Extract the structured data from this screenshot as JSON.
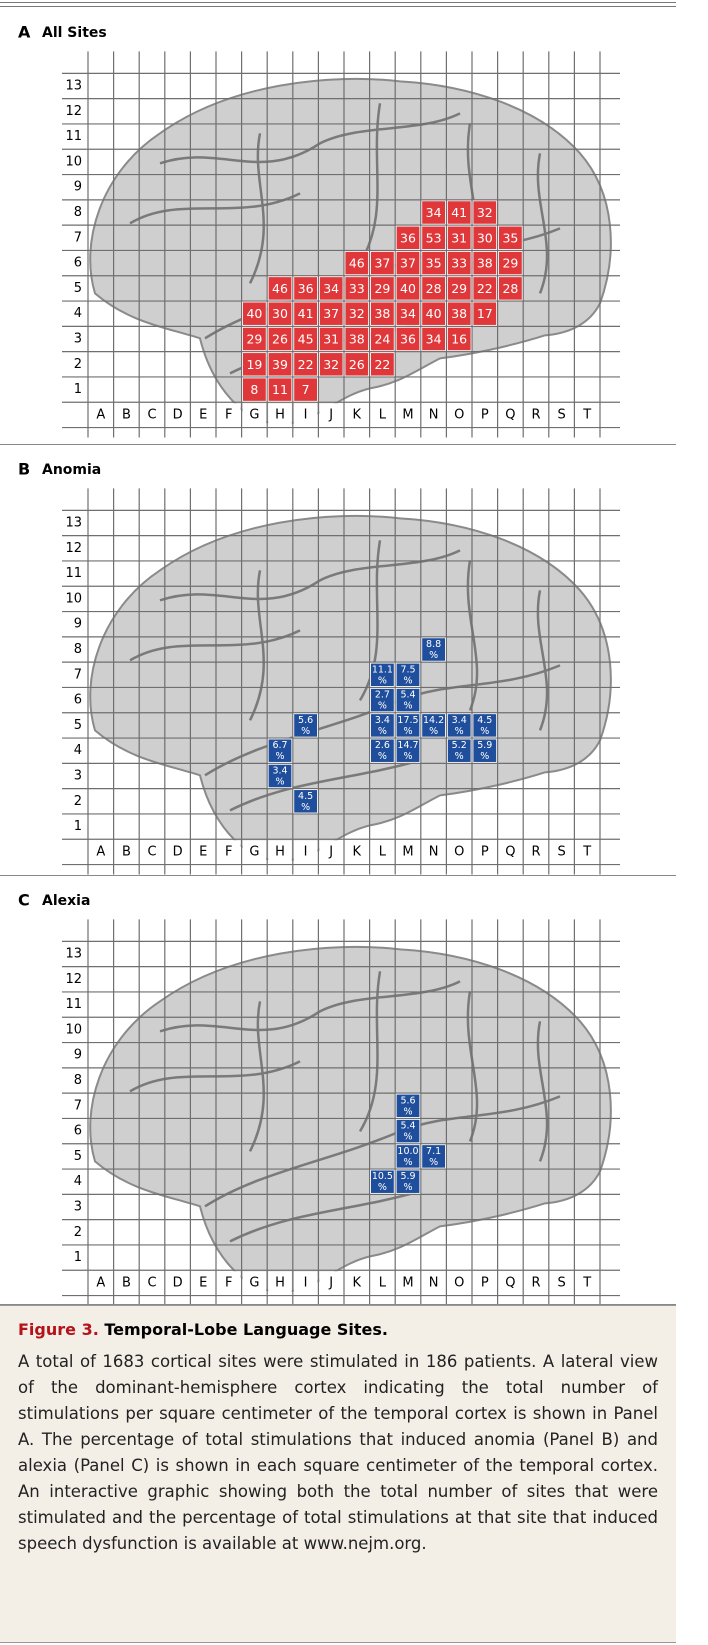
{
  "grid": {
    "rows": [
      13,
      12,
      11,
      10,
      9,
      8,
      7,
      6,
      5,
      4,
      3,
      2,
      1
    ],
    "columns": [
      "A",
      "B",
      "C",
      "D",
      "E",
      "F",
      "G",
      "H",
      "I",
      "J",
      "K",
      "L",
      "M",
      "N",
      "O",
      "P",
      "Q",
      "R",
      "S",
      "T"
    ]
  },
  "panels": [
    {
      "letter": "A",
      "title": "All Sites",
      "color": "#e0383a",
      "cells": [
        {
          "col": "N",
          "row": 8,
          "value": 34
        },
        {
          "col": "O",
          "row": 8,
          "value": 41
        },
        {
          "col": "P",
          "row": 8,
          "value": 32
        },
        {
          "col": "M",
          "row": 7,
          "value": 36
        },
        {
          "col": "N",
          "row": 7,
          "value": 53
        },
        {
          "col": "O",
          "row": 7,
          "value": 31
        },
        {
          "col": "P",
          "row": 7,
          "value": 30
        },
        {
          "col": "Q",
          "row": 7,
          "value": 35
        },
        {
          "col": "K",
          "row": 6,
          "value": 46
        },
        {
          "col": "L",
          "row": 6,
          "value": 37
        },
        {
          "col": "M",
          "row": 6,
          "value": 37
        },
        {
          "col": "N",
          "row": 6,
          "value": 35
        },
        {
          "col": "O",
          "row": 6,
          "value": 33
        },
        {
          "col": "P",
          "row": 6,
          "value": 38
        },
        {
          "col": "Q",
          "row": 6,
          "value": 29
        },
        {
          "col": "H",
          "row": 5,
          "value": 46
        },
        {
          "col": "I",
          "row": 5,
          "value": 36
        },
        {
          "col": "J",
          "row": 5,
          "value": 34
        },
        {
          "col": "K",
          "row": 5,
          "value": 33
        },
        {
          "col": "L",
          "row": 5,
          "value": 29
        },
        {
          "col": "M",
          "row": 5,
          "value": 40
        },
        {
          "col": "N",
          "row": 5,
          "value": 28
        },
        {
          "col": "O",
          "row": 5,
          "value": 29
        },
        {
          "col": "P",
          "row": 5,
          "value": 22
        },
        {
          "col": "Q",
          "row": 5,
          "value": 28
        },
        {
          "col": "G",
          "row": 4,
          "value": 40
        },
        {
          "col": "H",
          "row": 4,
          "value": 30
        },
        {
          "col": "I",
          "row": 4,
          "value": 41
        },
        {
          "col": "J",
          "row": 4,
          "value": 37
        },
        {
          "col": "K",
          "row": 4,
          "value": 32
        },
        {
          "col": "L",
          "row": 4,
          "value": 38
        },
        {
          "col": "M",
          "row": 4,
          "value": 34
        },
        {
          "col": "N",
          "row": 4,
          "value": 40
        },
        {
          "col": "O",
          "row": 4,
          "value": 38
        },
        {
          "col": "P",
          "row": 4,
          "value": 17
        },
        {
          "col": "G",
          "row": 3,
          "value": 29
        },
        {
          "col": "H",
          "row": 3,
          "value": 26
        },
        {
          "col": "I",
          "row": 3,
          "value": 45
        },
        {
          "col": "J",
          "row": 3,
          "value": 31
        },
        {
          "col": "K",
          "row": 3,
          "value": 38
        },
        {
          "col": "L",
          "row": 3,
          "value": 24
        },
        {
          "col": "M",
          "row": 3,
          "value": 36
        },
        {
          "col": "N",
          "row": 3,
          "value": 34
        },
        {
          "col": "O",
          "row": 3,
          "value": 16
        },
        {
          "col": "G",
          "row": 2,
          "value": 19
        },
        {
          "col": "H",
          "row": 2,
          "value": 39
        },
        {
          "col": "I",
          "row": 2,
          "value": 22
        },
        {
          "col": "J",
          "row": 2,
          "value": 32
        },
        {
          "col": "K",
          "row": 2,
          "value": 26
        },
        {
          "col": "L",
          "row": 2,
          "value": 22
        },
        {
          "col": "G",
          "row": 1,
          "value": 8
        },
        {
          "col": "H",
          "row": 1,
          "value": 11
        },
        {
          "col": "I",
          "row": 1,
          "value": 7
        }
      ]
    },
    {
      "letter": "B",
      "title": "Anomia",
      "color": "#1f4e9c",
      "cells": [
        {
          "col": "N",
          "row": 8,
          "value": "8.8",
          "unit": "%"
        },
        {
          "col": "L",
          "row": 7,
          "value": "11.1",
          "unit": "%"
        },
        {
          "col": "M",
          "row": 7,
          "value": "7.5",
          "unit": "%"
        },
        {
          "col": "L",
          "row": 6,
          "value": "2.7",
          "unit": "%"
        },
        {
          "col": "M",
          "row": 6,
          "value": "5.4",
          "unit": "%"
        },
        {
          "col": "I",
          "row": 5,
          "value": "5.6",
          "unit": "%"
        },
        {
          "col": "L",
          "row": 5,
          "value": "3.4",
          "unit": "%"
        },
        {
          "col": "M",
          "row": 5,
          "value": "17.5",
          "unit": "%"
        },
        {
          "col": "N",
          "row": 5,
          "value": "14.2",
          "unit": "%"
        },
        {
          "col": "O",
          "row": 5,
          "value": "3.4",
          "unit": "%"
        },
        {
          "col": "P",
          "row": 5,
          "value": "4.5",
          "unit": "%"
        },
        {
          "col": "H",
          "row": 4,
          "value": "6.7",
          "unit": "%"
        },
        {
          "col": "L",
          "row": 4,
          "value": "2.6",
          "unit": "%"
        },
        {
          "col": "M",
          "row": 4,
          "value": "14.7",
          "unit": "%"
        },
        {
          "col": "O",
          "row": 4,
          "value": "5.2",
          "unit": "%"
        },
        {
          "col": "P",
          "row": 4,
          "value": "5.9",
          "unit": "%"
        },
        {
          "col": "H",
          "row": 3,
          "value": "3.4",
          "unit": "%"
        },
        {
          "col": "I",
          "row": 2,
          "value": "4.5",
          "unit": "%"
        }
      ]
    },
    {
      "letter": "C",
      "title": "Alexia",
      "color": "#1f4e9c",
      "cells": [
        {
          "col": "M",
          "row": 7,
          "value": "5.6",
          "unit": "%"
        },
        {
          "col": "M",
          "row": 6,
          "value": "5.4",
          "unit": "%"
        },
        {
          "col": "M",
          "row": 5,
          "value": "10.0",
          "unit": "%"
        },
        {
          "col": "N",
          "row": 5,
          "value": "7.1",
          "unit": "%"
        },
        {
          "col": "L",
          "row": 4,
          "value": "10.5",
          "unit": "%"
        },
        {
          "col": "M",
          "row": 4,
          "value": "5.9",
          "unit": "%"
        }
      ]
    }
  ],
  "caption": {
    "label": "Figure 3.",
    "title": "Temporal-Lobe Language Sites.",
    "body": "A total of 1683 cortical sites were stimulated in 186 patients. A lateral view of the dominant-hemisphere cortex indicating the total number of stimulations per square centimeter of the temporal cortex is shown in Panel A. The percentage of total stimulations that induced anomia (Panel B) and alexia (Panel C) is shown in each square centimeter of the temporal cortex. An interactive graphic showing both the total number of sites that were stimulated and the percentage of total stimulations at that site that induced speech dysfunction is available at www.nejm.org."
  }
}
